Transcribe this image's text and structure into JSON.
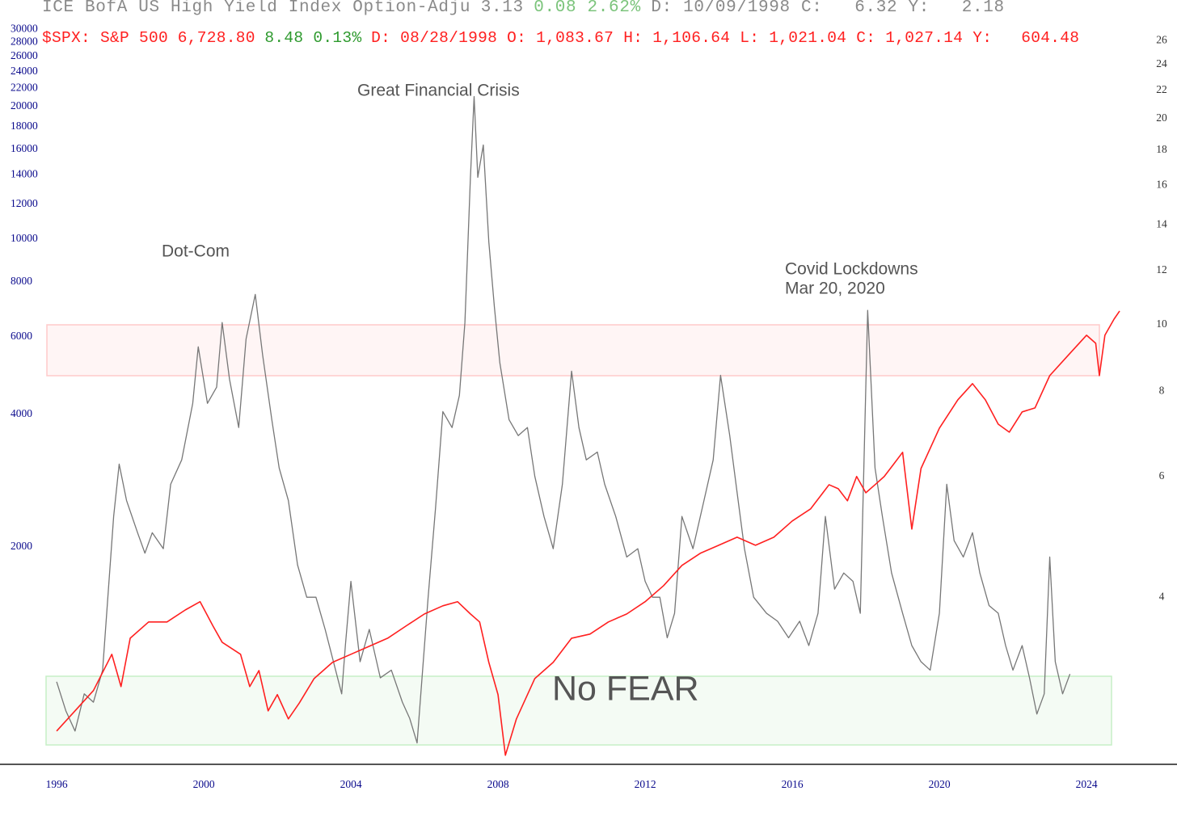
{
  "chart_data": {
    "type": "line",
    "xlim": [
      1994.46,
      2026.46
    ],
    "xticks": [
      1996,
      2000,
      2004,
      2008,
      2012,
      2016,
      2020,
      2024
    ],
    "ylim": [
      641,
      30800
    ],
    "log_y": true,
    "yticks": [
      2000,
      4000,
      6000,
      8000,
      10000,
      12000,
      14000,
      16000,
      18000,
      20000,
      22000,
      24000,
      26000,
      28000,
      30000
    ],
    "y2lim": [
      2.28,
      27.5
    ],
    "log_y2": true,
    "y2ticks": [
      4,
      6,
      8,
      10,
      12,
      14,
      16,
      18,
      20,
      22,
      24,
      26
    ],
    "grid": false,
    "annotations": [
      "Dot-Com",
      "Great Financial Crisis",
      "Covid Lockdowns",
      "Mar 20, 2020",
      "No FEAR"
    ],
    "series": [
      {
        "name": "ICE BofA US High Yield Index Option-Adju",
        "color": "#777777",
        "axis": "y2",
        "quote": [
          {
            "text": "3.13",
            "color": "#8a8a8a"
          },
          {
            "text": "0.08 2.62%",
            "color": "#7cc47c"
          },
          {
            "text": "D: 10/09/1998 C:   6.32 Y:   2.18",
            "color": "#8a8a8a"
          }
        ],
        "x": [
          1996.0,
          1996.25,
          1996.5,
          1996.75,
          1997.0,
          1997.25,
          1997.55,
          1997.7,
          1997.9,
          1998.2,
          1998.4,
          1998.6,
          1998.9,
          1999.1,
          1999.4,
          1999.7,
          1999.85,
          2000.1,
          2000.35,
          2000.5,
          2000.7,
          2000.95,
          2001.15,
          2001.4,
          2001.6,
          2001.85,
          2002.05,
          2002.3,
          2002.55,
          2002.8,
          2003.05,
          2003.3,
          2003.5,
          2003.75,
          2003.85,
          2004.0,
          2004.25,
          2004.5,
          2004.8,
          2005.1,
          2005.4,
          2005.6,
          2005.8,
          2006.1,
          2006.3,
          2006.5,
          2006.75,
          2006.95,
          2007.1,
          2007.25,
          2007.35,
          2007.45,
          2007.6,
          2007.75,
          2007.9,
          2008.05,
          2008.3,
          2008.55,
          2008.8,
          2009.0,
          2009.25,
          2009.5,
          2009.75,
          2010.0,
          2010.2,
          2010.4,
          2010.7,
          2010.9,
          2011.2,
          2011.5,
          2011.8,
          2012.0,
          2012.2,
          2012.4,
          2012.6,
          2012.8,
          2013.0,
          2013.3,
          2013.6,
          2013.85,
          2014.05,
          2014.3,
          2014.5,
          2014.7,
          2014.95,
          2015.3,
          2015.6,
          2015.9,
          2016.2,
          2016.45,
          2016.7,
          2016.9,
          2017.15,
          2017.4,
          2017.65,
          2017.85,
          2018.05,
          2018.25,
          2018.45,
          2018.7,
          2019.0,
          2019.25,
          2019.5,
          2019.75,
          2020.0,
          2020.2,
          2020.4,
          2020.65,
          2020.9,
          2021.1,
          2021.35,
          2021.6,
          2021.8,
          2022.0,
          2022.25,
          2022.45,
          2022.65,
          2022.85,
          2023.0,
          2023.15,
          2023.35,
          2023.55
        ],
        "values": [
          3.01,
          2.73,
          2.55,
          2.89,
          2.81,
          3.13,
          5.25,
          6.26,
          5.54,
          4.97,
          4.64,
          4.97,
          4.71,
          5.85,
          6.35,
          7.68,
          9.29,
          7.68,
          8.11,
          10.08,
          8.33,
          7.08,
          9.54,
          11.08,
          9.04,
          7.27,
          6.18,
          5.54,
          4.46,
          4.0,
          4.0,
          3.59,
          3.26,
          2.89,
          3.4,
          4.22,
          3.22,
          3.59,
          3.05,
          3.13,
          2.81,
          2.66,
          2.45,
          4.0,
          5.39,
          7.47,
          7.08,
          7.89,
          10.08,
          16.43,
          21.56,
          16.43,
          18.32,
          13.22,
          10.64,
          8.8,
          7.27,
          6.89,
          7.08,
          6.01,
          5.25,
          4.71,
          5.85,
          8.56,
          7.08,
          6.35,
          6.52,
          5.85,
          5.25,
          4.58,
          4.71,
          4.22,
          4.0,
          4.0,
          3.49,
          3.79,
          5.25,
          4.71,
          5.54,
          6.35,
          8.44,
          6.89,
          5.69,
          4.71,
          4.0,
          3.79,
          3.69,
          3.49,
          3.69,
          3.4,
          3.79,
          5.25,
          4.11,
          4.34,
          4.22,
          3.79,
          10.5,
          6.18,
          5.25,
          4.34,
          3.79,
          3.4,
          3.22,
          3.13,
          3.79,
          5.85,
          4.84,
          4.58,
          4.97,
          4.34,
          3.89,
          3.79,
          3.4,
          3.13,
          3.4,
          3.05,
          2.7,
          2.89,
          4.58,
          3.22,
          2.89,
          3.09
        ]
      },
      {
        "name": "$SPX: S&P 500",
        "color": "#ff2020",
        "axis": "y",
        "quote": [
          {
            "text": "6,728.80",
            "color": "#ff2020"
          },
          {
            "text": "8.48 0.13%",
            "color": "#2e9a2e"
          },
          {
            "text": "D: 08/28/1998 O: 1,083.67 H: 1,106.64 L: 1,021.04 C: 1,027.14 Y:   604.48",
            "color": "#ff2020"
          }
        ],
        "x": [
          1996.0,
          1996.5,
          1997.0,
          1997.5,
          1997.75,
          1998.0,
          1998.5,
          1999.0,
          1999.5,
          1999.9,
          2000.25,
          2000.5,
          2001.0,
          2001.25,
          2001.5,
          2001.75,
          2002.0,
          2002.3,
          2002.6,
          2003.0,
          2003.5,
          2004.0,
          2004.5,
          2005.0,
          2005.5,
          2006.0,
          2006.5,
          2006.9,
          2007.25,
          2007.5,
          2007.75,
          2008.0,
          2008.2,
          2008.5,
          2009.0,
          2009.5,
          2010.0,
          2010.5,
          2011.0,
          2011.5,
          2012.0,
          2012.5,
          2013.0,
          2013.5,
          2014.0,
          2014.5,
          2015.0,
          2015.5,
          2016.0,
          2016.5,
          2017.0,
          2017.25,
          2017.5,
          2017.75,
          2018.0,
          2018.25,
          2018.5,
          2018.75,
          2019.0,
          2019.25,
          2019.5,
          2020.0,
          2020.5,
          2020.9,
          2021.25,
          2021.6,
          2021.9,
          2022.25,
          2022.6,
          2023.0,
          2023.5,
          2024.0,
          2024.25,
          2024.35,
          2024.5,
          2024.75,
          2024.9
        ],
        "values": [
          763,
          848,
          943,
          1140,
          963,
          1240,
          1350,
          1350,
          1438,
          1501,
          1322,
          1214,
          1140,
          963,
          1047,
          848,
          923,
          813,
          884,
          1004,
          1093,
          1140,
          1189,
          1240,
          1322,
          1408,
          1469,
          1501,
          1408,
          1350,
          1093,
          923,
          672,
          813,
          1004,
          1093,
          1240,
          1267,
          1350,
          1408,
          1501,
          1632,
          1815,
          1934,
          2017,
          2104,
          2017,
          2104,
          2290,
          2440,
          2768,
          2711,
          2545,
          2890,
          2654,
          2768,
          2890,
          3077,
          3280,
          2195,
          3013,
          3722,
          4315,
          4698,
          4315,
          3800,
          3644,
          4052,
          4138,
          4900,
          5447,
          6052,
          5802,
          4900,
          6052,
          6587,
          6870
        ]
      }
    ]
  }
}
